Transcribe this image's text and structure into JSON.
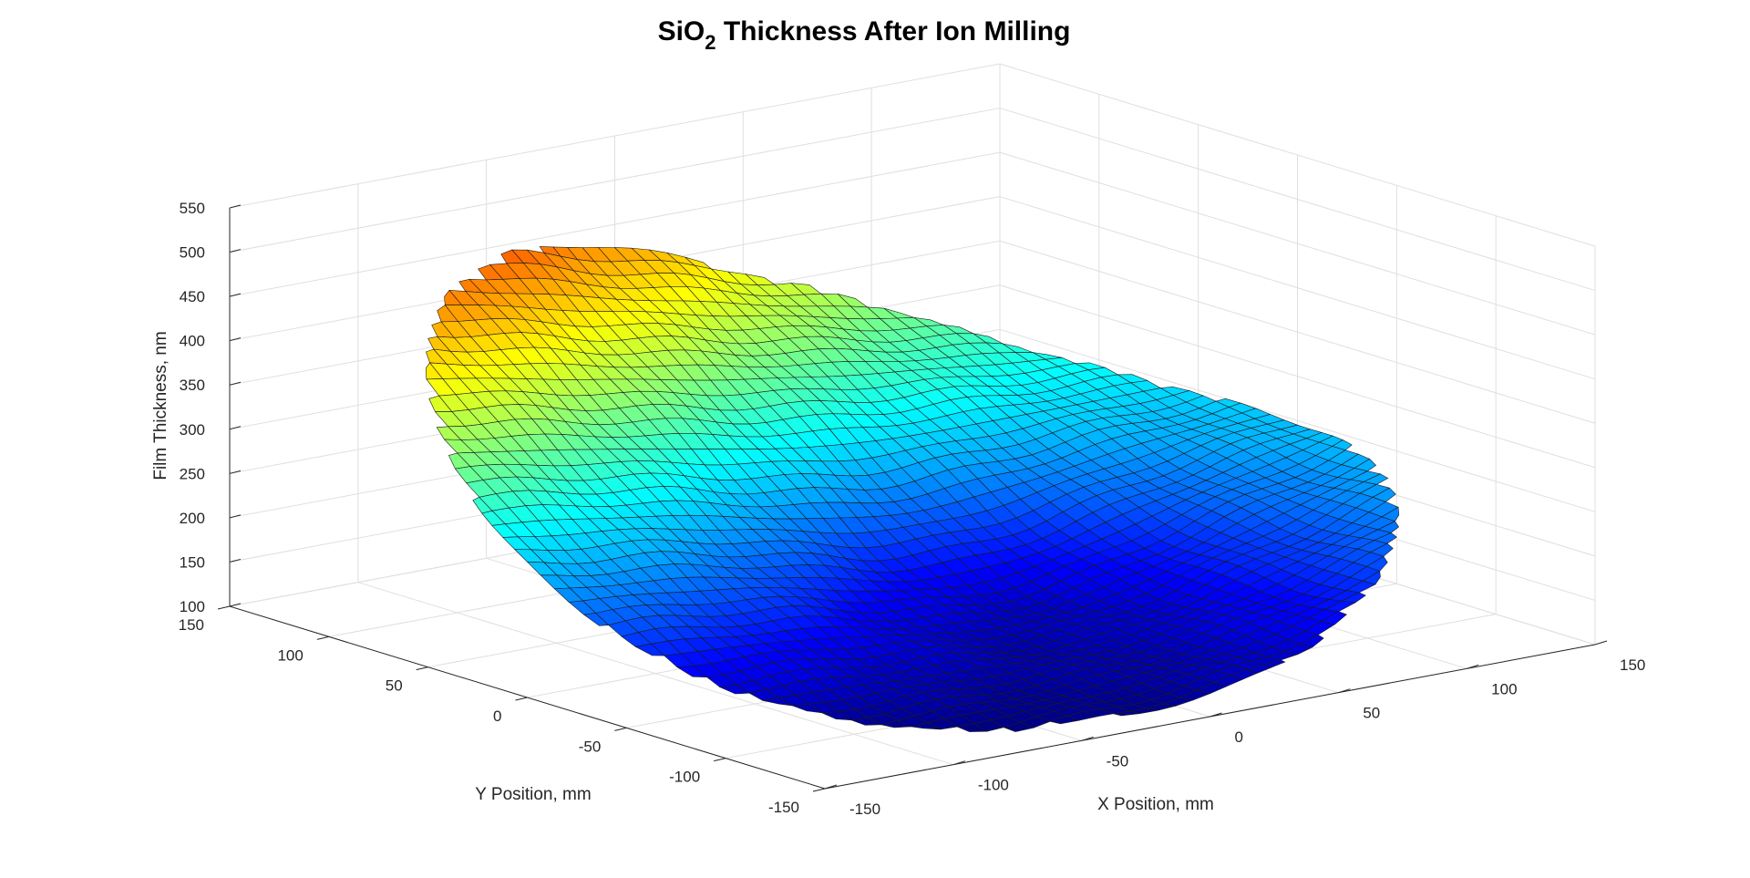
{
  "chart_data": {
    "type": "surface",
    "title_main": "SiO",
    "title_sub": "2",
    "title_rest": " Thickness After Ion Milling",
    "xlabel": "X Position, mm",
    "ylabel": "Y Position, mm",
    "zlabel": "Film Thickness, nm",
    "xlim": [
      -150,
      150
    ],
    "ylim": [
      -150,
      150
    ],
    "zlim": [
      100,
      550
    ],
    "xticks": [
      "-150",
      "-100",
      "-50",
      "0",
      "50",
      "100",
      "150"
    ],
    "yticks": [
      "-150",
      "-100",
      "-50",
      "0",
      "50",
      "100",
      "150"
    ],
    "zticks": [
      "100",
      "150",
      "200",
      "250",
      "300",
      "350",
      "400",
      "450",
      "500",
      "550"
    ],
    "colormap": "jet",
    "grid": true,
    "surface_description_points": [
      {
        "x": -140,
        "y": 140,
        "z": 545
      },
      {
        "x": 140,
        "y": -20,
        "z": 325
      },
      {
        "x": 0,
        "y": 0,
        "z": 175
      },
      {
        "x": 0,
        "y": -140,
        "z": 110
      },
      {
        "x": 140,
        "y": -140,
        "z": 290
      }
    ]
  }
}
